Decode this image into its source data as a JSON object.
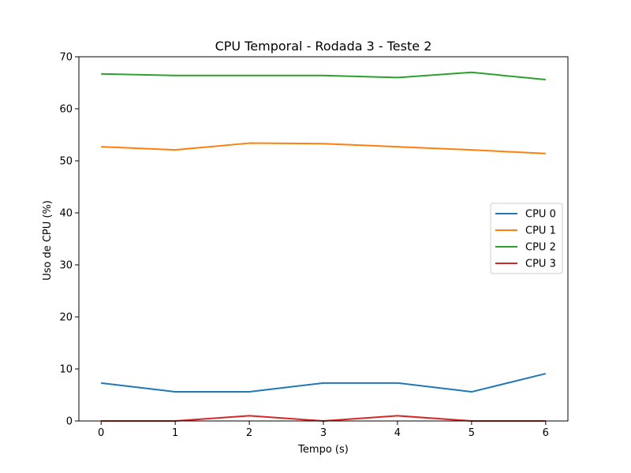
{
  "chart_data": {
    "type": "line",
    "title": "CPU Temporal - Rodada 3 - Teste 2",
    "xlabel": "Tempo (s)",
    "ylabel": "Uso de CPU (%)",
    "x": [
      0,
      1,
      2,
      3,
      4,
      5,
      6
    ],
    "xlim": [
      -0.3,
      6.3
    ],
    "ylim": [
      0,
      70
    ],
    "xticks": [
      "0",
      "1",
      "2",
      "3",
      "4",
      "5",
      "6"
    ],
    "yticks": [
      "0",
      "10",
      "20",
      "30",
      "40",
      "50",
      "60",
      "70"
    ],
    "grid": false,
    "legend_position": "center-right",
    "series": [
      {
        "name": "CPU 0",
        "color": "#1f77b4",
        "values": [
          7.3,
          5.6,
          5.6,
          7.3,
          7.3,
          5.6,
          9.1
        ]
      },
      {
        "name": "CPU 1",
        "color": "#ff7f0e",
        "values": [
          52.7,
          52.1,
          53.4,
          53.3,
          52.7,
          52.1,
          51.4
        ]
      },
      {
        "name": "CPU 2",
        "color": "#2ca02c",
        "values": [
          66.7,
          66.4,
          66.4,
          66.4,
          66.0,
          67.0,
          65.6
        ]
      },
      {
        "name": "CPU 3",
        "color": "#d62728",
        "values": [
          0.0,
          0.0,
          1.0,
          0.0,
          1.0,
          0.0,
          0.0
        ]
      }
    ]
  }
}
